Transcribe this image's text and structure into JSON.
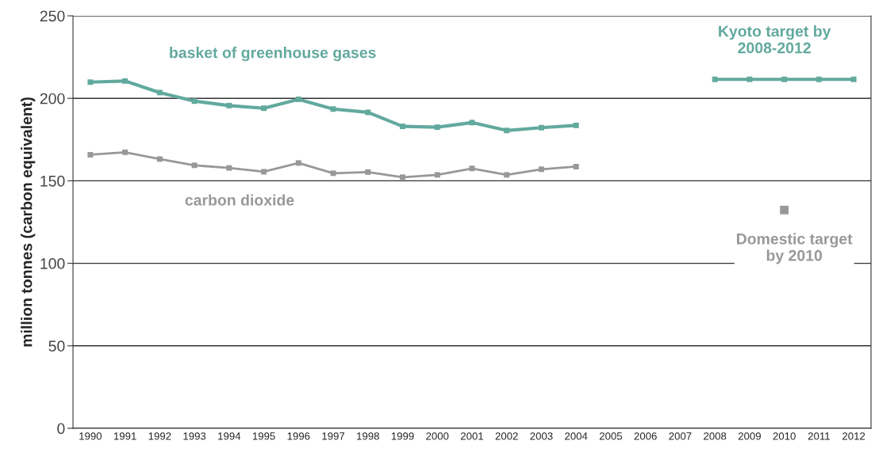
{
  "chart_data": {
    "type": "line",
    "ylabel": "million tonnes (carbon equivalent)",
    "categories": [
      "1990",
      "1991",
      "1992",
      "1993",
      "1994",
      "1995",
      "1996",
      "1997",
      "1998",
      "1999",
      "2000",
      "2001",
      "2002",
      "2003",
      "2004",
      "2005",
      "2006",
      "2007",
      "2008",
      "2009",
      "2010",
      "2011",
      "2012"
    ],
    "series": [
      {
        "name": "basket of greenhouse gases",
        "color": "#62a99e",
        "values": [
          209.8,
          210.5,
          203.5,
          198.3,
          195.6,
          194,
          199.4,
          193.5,
          191.5,
          183,
          182.5,
          185.3,
          180.5,
          182.2,
          183.6,
          null,
          null,
          null,
          null,
          null,
          null,
          null,
          null
        ]
      },
      {
        "name": "carbon dioxide",
        "color": "#98989b",
        "values": [
          165.8,
          167.3,
          163.2,
          159.4,
          157.8,
          155.5,
          160.8,
          154.6,
          155.3,
          152.2,
          153.6,
          157.5,
          153.6,
          157,
          158.6,
          null,
          null,
          null,
          null,
          null,
          null,
          null,
          null
        ]
      },
      {
        "name": "Kyoto target by 2008-2012",
        "color": "#62a99e",
        "values": [
          null,
          null,
          null,
          null,
          null,
          null,
          null,
          null,
          null,
          null,
          null,
          null,
          null,
          null,
          null,
          null,
          null,
          null,
          211.5,
          211.5,
          211.5,
          211.5,
          211.5
        ]
      },
      {
        "name": "Domestic target by 2010",
        "type": "scatter",
        "color": "#98989b",
        "values": [
          null,
          null,
          null,
          null,
          null,
          null,
          null,
          null,
          null,
          null,
          null,
          null,
          null,
          null,
          null,
          null,
          null,
          null,
          null,
          null,
          132.3,
          null,
          null
        ]
      }
    ],
    "ylim": [
      0,
      250
    ],
    "yticks": [
      0,
      50,
      100,
      150,
      200,
      250
    ],
    "grid": "y",
    "marker": "square"
  }
}
